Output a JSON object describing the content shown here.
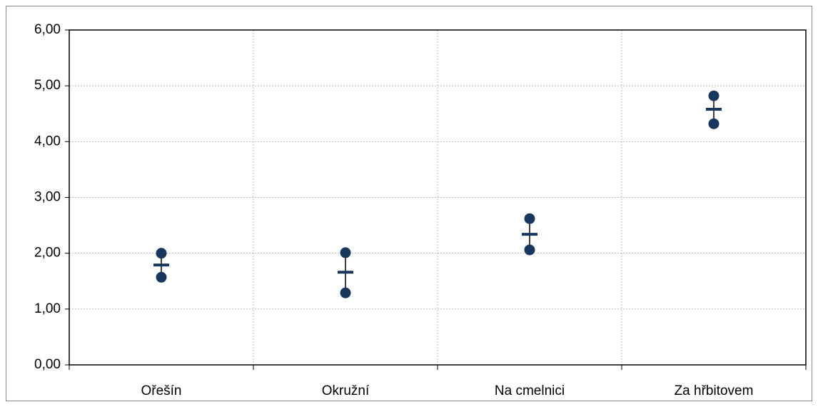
{
  "chart_data": {
    "type": "high-low-mean",
    "categories": [
      "Ořešín",
      "Okružní",
      "Na cmelnici",
      "Za hřbitovem"
    ],
    "series": [
      {
        "color": "#17375e",
        "marker": "circle",
        "values": [
          2.0,
          2.01,
          2.62,
          4.82
        ]
      },
      {
        "color": "#17375e",
        "marker": "circle",
        "values": [
          1.57,
          1.29,
          2.06,
          4.32
        ]
      },
      {
        "color": "#17375e",
        "marker": "dash",
        "values": [
          1.79,
          1.66,
          2.34,
          4.58
        ]
      }
    ],
    "ylim": [
      0,
      6
    ],
    "yticks": [
      {
        "value": 0,
        "label": "0,00"
      },
      {
        "value": 1,
        "label": "1,00"
      },
      {
        "value": 2,
        "label": "2,00"
      },
      {
        "value": 3,
        "label": "3,00"
      },
      {
        "value": 4,
        "label": "4,00"
      },
      {
        "value": 5,
        "label": "5,00"
      },
      {
        "value": 6,
        "label": "6,00"
      }
    ],
    "grid": true
  }
}
